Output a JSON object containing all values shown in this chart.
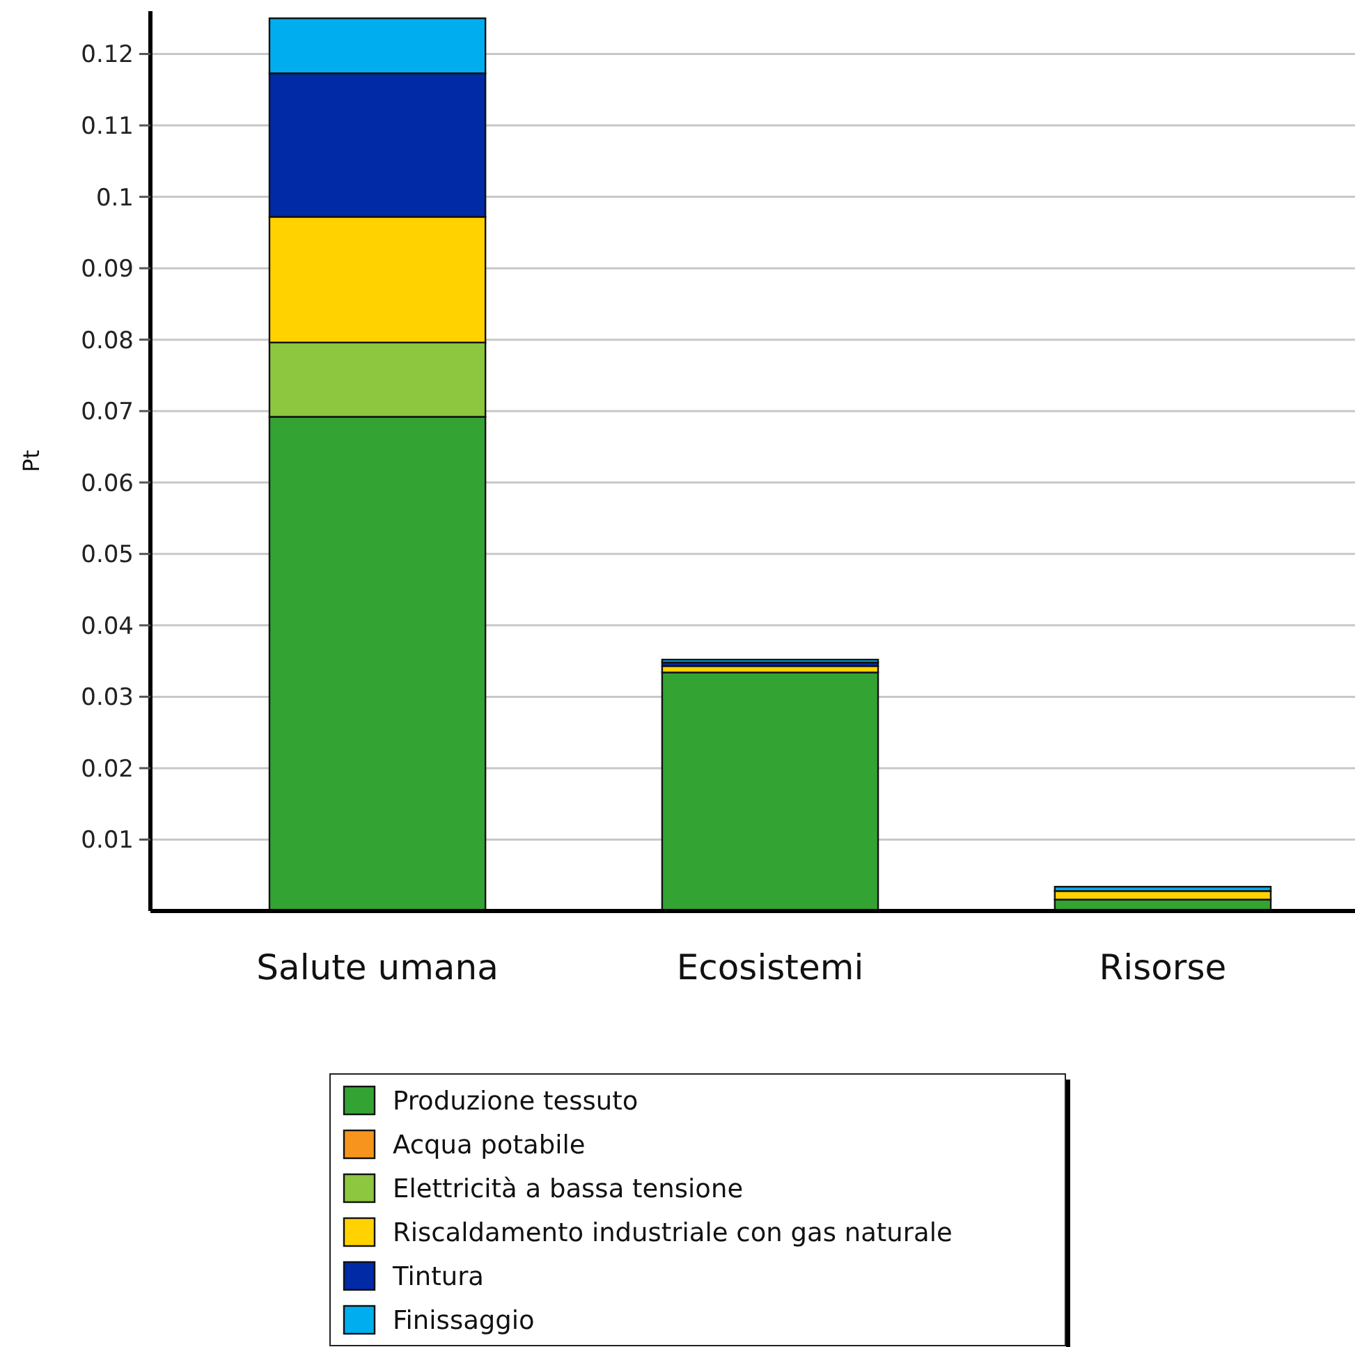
{
  "chart_data": {
    "type": "bar",
    "stacked": true,
    "ylabel": "Pt",
    "categories": [
      "Salute umana",
      "Ecosistemi",
      "Risorse"
    ],
    "series": [
      {
        "name": "Produzione tessuto",
        "color": "#33a333",
        "values": [
          0.0692,
          0.0334,
          0.0016
        ]
      },
      {
        "name": "Acqua potabile",
        "color": "#f7941d",
        "values": [
          0,
          0,
          0
        ]
      },
      {
        "name": "Elettricità a bassa tensione",
        "color": "#8dc63f",
        "values": [
          0.0104,
          null,
          null
        ]
      },
      {
        "name": "Riscaldamento industriale con gas naturale",
        "color": "#ffd200",
        "values": [
          0.0176,
          0.0009,
          0.0012
        ]
      },
      {
        "name": "Tintura",
        "color": "#002aa6",
        "values": [
          0.0201,
          0.0005,
          null
        ]
      },
      {
        "name": "Finissaggio",
        "color": "#00aeef",
        "values": [
          0.0077,
          0.0004,
          0.0006
        ]
      }
    ],
    "ylim": [
      0,
      0.126
    ],
    "yticks": [
      0.01,
      0.02,
      0.03,
      0.04,
      0.05,
      0.06,
      0.07,
      0.08,
      0.09,
      0.1,
      0.11,
      0.12
    ],
    "grid": "y",
    "legend": "bottom"
  }
}
